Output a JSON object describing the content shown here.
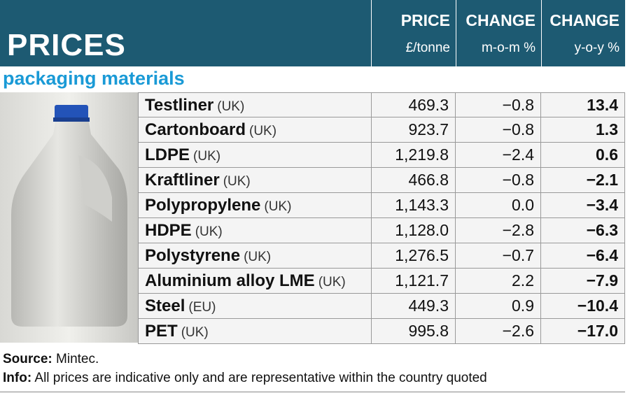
{
  "header": {
    "title": "PRICES",
    "columns": [
      {
        "label": "PRICE",
        "unit": "£/tonne"
      },
      {
        "label": "CHANGE",
        "unit": "m-o-m %"
      },
      {
        "label": "CHANGE",
        "unit": "y-o-y %"
      }
    ]
  },
  "subtitle": "packaging materials",
  "table": {
    "rows": [
      [
        "Testliner",
        "(UK)",
        "469.3",
        "−0.8",
        "13.4"
      ],
      [
        "Cartonboard",
        "(UK)",
        "923.7",
        "−0.8",
        "1.3"
      ],
      [
        "LDPE",
        "(UK)",
        "1,219.8",
        "−2.4",
        "0.6"
      ],
      [
        "Kraftliner",
        "(UK)",
        "466.8",
        "−0.8",
        "−2.1"
      ],
      [
        "Polypropylene",
        "(UK)",
        "1,143.3",
        "0.0",
        "−3.4"
      ],
      [
        "HDPE",
        "(UK)",
        "1,128.0",
        "−2.8",
        "−6.3"
      ],
      [
        "Polystyrene",
        "(UK)",
        "1,276.5",
        "−0.7",
        "−6.4"
      ],
      [
        "Aluminium alloy LME",
        "(UK)",
        "1,121.7",
        "2.2",
        "−7.9"
      ],
      [
        "Steel",
        "(EU)",
        "449.3",
        "0.9",
        "−10.4"
      ],
      [
        "PET",
        "(UK)",
        "995.8",
        "−2.6",
        "−17.0"
      ]
    ]
  },
  "footer": {
    "source_label": "Source:",
    "source": "Mintec.",
    "info_label": "Info:",
    "info": "All prices are indicative only and are representative within the country quoted"
  }
}
